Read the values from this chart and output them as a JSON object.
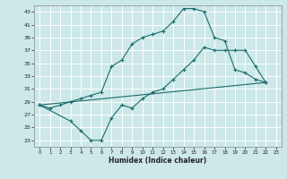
{
  "xlabel": "Humidex (Indice chaleur)",
  "bg_color": "#cce8e8",
  "grid_color": "#ffffff",
  "line_color": "#1a6b6b",
  "xlim": [
    -0.5,
    23.5
  ],
  "ylim": [
    22,
    44
  ],
  "xticks": [
    0,
    1,
    2,
    3,
    4,
    5,
    6,
    7,
    8,
    9,
    10,
    11,
    12,
    13,
    14,
    15,
    16,
    17,
    18,
    19,
    20,
    21,
    22,
    23
  ],
  "yticks": [
    23,
    25,
    27,
    29,
    31,
    33,
    35,
    37,
    39,
    41,
    43
  ],
  "line1_x": [
    0,
    1,
    2,
    3,
    4,
    5,
    6,
    7,
    8,
    9,
    10,
    11,
    12,
    13,
    14,
    15,
    16,
    17,
    18,
    19,
    20,
    21,
    22
  ],
  "line1_y": [
    28.5,
    28.0,
    28.5,
    29.0,
    29.5,
    30.0,
    30.5,
    34.5,
    35.5,
    38.0,
    39.0,
    39.5,
    40.0,
    41.5,
    43.5,
    43.5,
    43.0,
    39.0,
    38.5,
    34.0,
    33.5,
    32.5,
    32.0
  ],
  "line2_x": [
    0,
    22
  ],
  "line2_y": [
    28.5,
    32.0
  ],
  "line3_x": [
    0,
    3,
    4,
    5,
    6,
    7,
    8,
    9,
    10,
    11,
    12,
    13,
    14,
    15,
    16,
    17,
    18,
    19,
    20,
    21,
    22
  ],
  "line3_y": [
    28.5,
    26.0,
    24.5,
    23.0,
    23.0,
    26.5,
    28.5,
    28.0,
    29.5,
    30.5,
    31.0,
    32.5,
    34.0,
    35.5,
    37.5,
    37.0,
    37.0,
    37.0,
    37.0,
    34.5,
    32.0
  ]
}
